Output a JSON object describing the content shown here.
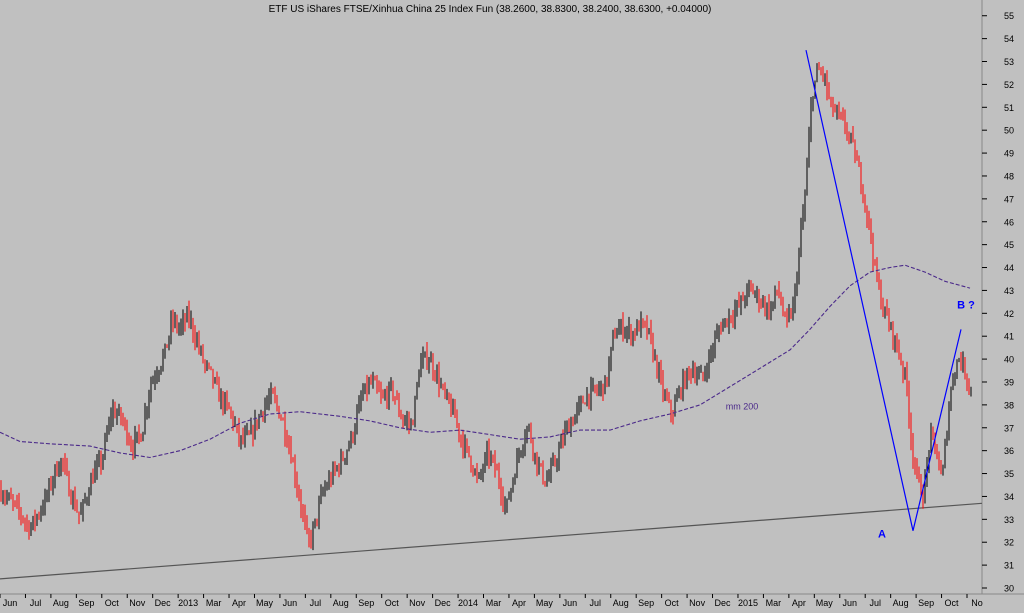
{
  "chart_data": {
    "type": "candlestick",
    "title": "ETF US iShares FTSE/Xinhua China 25 Index Fun (38.2600, 38.8300, 38.2400, 38.6300, +0.04000)",
    "ylim": [
      30,
      55.6
    ],
    "y_ticks": [
      30,
      31,
      32,
      33,
      34,
      35,
      36,
      37,
      38,
      39,
      40,
      41,
      42,
      43,
      44,
      45,
      46,
      47,
      48,
      49,
      50,
      51,
      52,
      53,
      54,
      55
    ],
    "x_ticks": [
      "Jun",
      "Jul",
      "Aug",
      "Sep",
      "Oct",
      "Nov",
      "Dec",
      "2013",
      "Mar",
      "Apr",
      "May",
      "Jun",
      "Jul",
      "Aug",
      "Sep",
      "Oct",
      "Nov",
      "Dec",
      "2014",
      "Mar",
      "Apr",
      "May",
      "Jun",
      "Jul",
      "Aug",
      "Sep",
      "Oct",
      "Nov",
      "Dec",
      "2015",
      "Mar",
      "Apr",
      "May",
      "Jun",
      "Jul",
      "Aug",
      "Sep",
      "Oct",
      "No"
    ],
    "close_path": [
      [
        0,
        34.3
      ],
      [
        18,
        33.4
      ],
      [
        30,
        32.6
      ],
      [
        45,
        33.8
      ],
      [
        55,
        35.1
      ],
      [
        62,
        35.6
      ],
      [
        70,
        34.2
      ],
      [
        80,
        33.1
      ],
      [
        92,
        34.8
      ],
      [
        102,
        35.6
      ],
      [
        112,
        37.8
      ],
      [
        122,
        37.4
      ],
      [
        132,
        36.2
      ],
      [
        142,
        36.8
      ],
      [
        150,
        38.9
      ],
      [
        158,
        39.6
      ],
      [
        166,
        40.4
      ],
      [
        172,
        41.7
      ],
      [
        180,
        41.3
      ],
      [
        188,
        41.9
      ],
      [
        196,
        40.9
      ],
      [
        204,
        39.8
      ],
      [
        212,
        39.2
      ],
      [
        220,
        38.3
      ],
      [
        230,
        37.7
      ],
      [
        240,
        36.4
      ],
      [
        250,
        36.6
      ],
      [
        262,
        37.8
      ],
      [
        272,
        38.4
      ],
      [
        282,
        37.4
      ],
      [
        290,
        36.1
      ],
      [
        296,
        34.7
      ],
      [
        302,
        33.4
      ],
      [
        308,
        31.9
      ],
      [
        314,
        32.6
      ],
      [
        322,
        34.1
      ],
      [
        332,
        34.9
      ],
      [
        342,
        35.6
      ],
      [
        352,
        36.6
      ],
      [
        362,
        38.4
      ],
      [
        372,
        39.0
      ],
      [
        382,
        38.2
      ],
      [
        392,
        38.7
      ],
      [
        402,
        37.4
      ],
      [
        412,
        37.1
      ],
      [
        420,
        39.8
      ],
      [
        428,
        40.1
      ],
      [
        436,
        39.4
      ],
      [
        444,
        38.4
      ],
      [
        454,
        37.6
      ],
      [
        462,
        36.4
      ],
      [
        470,
        35.7
      ],
      [
        478,
        34.6
      ],
      [
        488,
        35.9
      ],
      [
        498,
        34.9
      ],
      [
        506,
        33.4
      ],
      [
        512,
        34.6
      ],
      [
        520,
        36.1
      ],
      [
        528,
        37.1
      ],
      [
        536,
        35.6
      ],
      [
        546,
        34.6
      ],
      [
        556,
        35.6
      ],
      [
        566,
        36.9
      ],
      [
        576,
        37.6
      ],
      [
        586,
        38.4
      ],
      [
        596,
        38.6
      ],
      [
        606,
        38.9
      ],
      [
        614,
        41.1
      ],
      [
        622,
        41.4
      ],
      [
        632,
        41.1
      ],
      [
        640,
        41.5
      ],
      [
        648,
        41.2
      ],
      [
        656,
        39.8
      ],
      [
        664,
        38.4
      ],
      [
        672,
        37.6
      ],
      [
        682,
        38.9
      ],
      [
        692,
        39.6
      ],
      [
        702,
        39.1
      ],
      [
        712,
        40.4
      ],
      [
        720,
        41.4
      ],
      [
        730,
        41.9
      ],
      [
        740,
        42.4
      ],
      [
        750,
        43.1
      ],
      [
        760,
        42.6
      ],
      [
        770,
        42.1
      ],
      [
        778,
        43.1
      ],
      [
        786,
        41.4
      ],
      [
        794,
        42.4
      ],
      [
        800,
        45.1
      ],
      [
        806,
        47.6
      ],
      [
        812,
        51.6
      ],
      [
        818,
        52.6
      ],
      [
        824,
        52.4
      ],
      [
        830,
        51.1
      ],
      [
        838,
        50.6
      ],
      [
        846,
        50.1
      ],
      [
        854,
        49.1
      ],
      [
        862,
        47.6
      ],
      [
        870,
        45.6
      ],
      [
        876,
        43.6
      ],
      [
        882,
        42.4
      ],
      [
        890,
        41.4
      ],
      [
        898,
        40.4
      ],
      [
        906,
        39.1
      ],
      [
        912,
        36.1
      ],
      [
        918,
        34.6
      ],
      [
        924,
        34.1
      ],
      [
        930,
        36.6
      ],
      [
        936,
        36.1
      ],
      [
        942,
        34.6
      ],
      [
        948,
        37.6
      ],
      [
        954,
        39.6
      ],
      [
        960,
        40.1
      ],
      [
        966,
        39.3
      ],
      [
        972,
        38.6
      ]
    ],
    "moving_average": {
      "name": "mm 200",
      "points": [
        [
          0,
          36.8
        ],
        [
          20,
          36.4
        ],
        [
          50,
          36.3
        ],
        [
          90,
          36.2
        ],
        [
          120,
          35.9
        ],
        [
          150,
          35.7
        ],
        [
          180,
          36.0
        ],
        [
          210,
          36.5
        ],
        [
          240,
          37.2
        ],
        [
          270,
          37.6
        ],
        [
          300,
          37.7
        ],
        [
          340,
          37.5
        ],
        [
          370,
          37.3
        ],
        [
          400,
          37.0
        ],
        [
          430,
          36.8
        ],
        [
          460,
          36.9
        ],
        [
          490,
          36.7
        ],
        [
          520,
          36.5
        ],
        [
          550,
          36.6
        ],
        [
          580,
          36.9
        ],
        [
          610,
          36.9
        ],
        [
          640,
          37.3
        ],
        [
          670,
          37.6
        ],
        [
          700,
          38.0
        ],
        [
          730,
          38.8
        ],
        [
          760,
          39.6
        ],
        [
          790,
          40.4
        ],
        [
          810,
          41.3
        ],
        [
          830,
          42.3
        ],
        [
          850,
          43.2
        ],
        [
          870,
          43.8
        ],
        [
          890,
          44.0
        ],
        [
          905,
          44.1
        ],
        [
          925,
          43.8
        ],
        [
          945,
          43.4
        ],
        [
          970,
          43.1
        ]
      ]
    },
    "trend_lines": [
      {
        "from": [
          806,
          53.5
        ],
        "to": [
          913,
          32.5
        ],
        "color": "#0000ff"
      },
      {
        "from": [
          913,
          32.5
        ],
        "to": [
          961,
          41.3
        ],
        "color": "#0000ff"
      },
      {
        "from": [
          0,
          30.4
        ],
        "to": [
          982,
          33.7
        ],
        "color": "#555555"
      }
    ],
    "annotations": [
      {
        "text": "A",
        "x": 882,
        "y": 32.2,
        "color": "#0000ff"
      },
      {
        "text": "B ?",
        "x": 966,
        "y": 42.2,
        "color": "#0000ff"
      },
      {
        "text": "mm 200",
        "x": 742,
        "y": 37.8,
        "color": "#4b2a8a"
      }
    ],
    "colors": {
      "background": "#c0c0c0",
      "up": "#000000",
      "down": "#ff0000",
      "moving_average": "#4b2a8a",
      "wave_lines": "#0000ff",
      "support_line": "#555555"
    }
  }
}
